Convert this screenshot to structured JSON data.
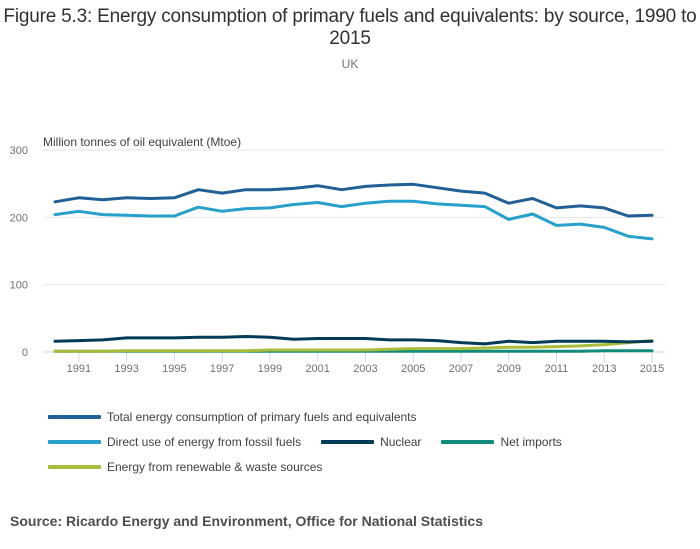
{
  "header": {
    "title": "Figure 5.3: Energy consumption of primary fuels and equivalents: by source, 1990 to 2015",
    "subtitle": "UK"
  },
  "source": "Source: Ricardo Energy and Environment, Office for National Statistics",
  "chart_data": {
    "type": "line",
    "title": "Figure 5.3: Energy consumption of primary fuels and equivalents: by source, 1990 to 2015",
    "subtitle": "UK",
    "xlabel": "",
    "ylabel": "Million tonnes of oil equivalent (Mtoe)",
    "ylim": [
      0,
      300
    ],
    "yticks": [
      0,
      100,
      200,
      300
    ],
    "xticks": [
      1991,
      1993,
      1995,
      1997,
      1999,
      2001,
      2003,
      2005,
      2007,
      2009,
      2011,
      2013,
      2015
    ],
    "grid": true,
    "legend_position": "bottom",
    "x": [
      1990,
      1991,
      1992,
      1993,
      1994,
      1995,
      1996,
      1997,
      1998,
      1999,
      2000,
      2001,
      2002,
      2003,
      2004,
      2005,
      2006,
      2007,
      2008,
      2009,
      2010,
      2011,
      2012,
      2013,
      2014,
      2015
    ],
    "series": [
      {
        "name": "Total energy consumption of primary fuels and equivalents",
        "color": "#206095",
        "values": [
          223,
          229,
          226,
          229,
          228,
          229,
          241,
          236,
          241,
          241,
          243,
          247,
          241,
          246,
          248,
          249,
          244,
          239,
          236,
          221,
          228,
          214,
          217,
          214,
          202,
          203
        ]
      },
      {
        "name": "Direct use of energy from fossil fuels",
        "color": "#27a0cc",
        "values": [
          204,
          209,
          204,
          203,
          202,
          202,
          215,
          209,
          213,
          214,
          219,
          222,
          216,
          221,
          224,
          224,
          220,
          218,
          216,
          197,
          205,
          188,
          190,
          185,
          172,
          168
        ]
      },
      {
        "name": "Nuclear",
        "color": "#003c57",
        "values": [
          16,
          17,
          18,
          21,
          21,
          21,
          22,
          22,
          23,
          22,
          19,
          20,
          20,
          20,
          18,
          18,
          17,
          14,
          12,
          16,
          14,
          16,
          16,
          16,
          15,
          16
        ]
      },
      {
        "name": "Net imports",
        "color": "#118c7b",
        "values": [
          1,
          1,
          1,
          1,
          1,
          1,
          1,
          1,
          1,
          1,
          1,
          1,
          1,
          1,
          1,
          1,
          1,
          1,
          1,
          1,
          1,
          1,
          1,
          2,
          2,
          2
        ]
      },
      {
        "name": "Energy from renewable & waste sources",
        "color": "#a8bd3a",
        "values": [
          1,
          1,
          1,
          2,
          2,
          2,
          2,
          2,
          2,
          3,
          3,
          3,
          3,
          3,
          4,
          5,
          5,
          5,
          6,
          7,
          7,
          8,
          9,
          11,
          14,
          17
        ]
      }
    ]
  }
}
